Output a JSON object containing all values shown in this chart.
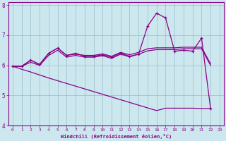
{
  "xlabel": "Windchill (Refroidissement éolien,°C)",
  "bg_color": "#cce8ee",
  "line_color": "#880088",
  "grid_color": "#99bbcc",
  "xmin": -0.5,
  "xmax": 23.5,
  "ymin": 4.0,
  "ymax": 8.1,
  "yticks": [
    4,
    5,
    6,
    7,
    8
  ],
  "xticks": [
    0,
    1,
    2,
    3,
    4,
    5,
    6,
    7,
    8,
    9,
    10,
    11,
    12,
    13,
    14,
    15,
    16,
    17,
    18,
    19,
    20,
    21,
    22,
    23
  ],
  "main_x": [
    0,
    1,
    2,
    3,
    4,
    5,
    6,
    7,
    8,
    9,
    10,
    11,
    12,
    13,
    14,
    15,
    16,
    17,
    18,
    19,
    20,
    21,
    22
  ],
  "main_y": [
    5.97,
    5.97,
    6.17,
    6.03,
    6.4,
    6.57,
    6.33,
    6.4,
    6.3,
    6.3,
    6.35,
    6.27,
    6.4,
    6.3,
    6.37,
    7.3,
    7.73,
    7.57,
    6.47,
    6.5,
    6.47,
    6.9,
    4.57
  ],
  "upper1_x": [
    0,
    1,
    2,
    3,
    4,
    5,
    6,
    7,
    8,
    9,
    10,
    11,
    12,
    13,
    14,
    15,
    16,
    17,
    18,
    19,
    20,
    21,
    22
  ],
  "upper1_y": [
    5.97,
    5.97,
    6.17,
    6.03,
    6.4,
    6.57,
    6.33,
    6.37,
    6.33,
    6.33,
    6.38,
    6.3,
    6.43,
    6.35,
    6.43,
    6.55,
    6.58,
    6.58,
    6.58,
    6.6,
    6.6,
    6.6,
    6.05
  ],
  "upper2_x": [
    0,
    1,
    2,
    3,
    4,
    5,
    6,
    7,
    8,
    9,
    10,
    11,
    12,
    13,
    14,
    15,
    16,
    17,
    18,
    19,
    20,
    21,
    22
  ],
  "upper2_y": [
    5.97,
    5.97,
    6.1,
    6.0,
    6.33,
    6.5,
    6.27,
    6.33,
    6.27,
    6.27,
    6.32,
    6.23,
    6.37,
    6.28,
    6.37,
    6.48,
    6.52,
    6.52,
    6.52,
    6.55,
    6.55,
    6.55,
    6.0
  ],
  "lower_x": [
    0,
    1,
    2,
    3,
    4,
    5,
    6,
    7,
    8,
    9,
    10,
    11,
    12,
    13,
    14,
    15,
    16,
    17,
    18,
    19,
    20,
    21,
    22
  ],
  "lower_y": [
    5.97,
    5.87,
    5.78,
    5.68,
    5.58,
    5.49,
    5.4,
    5.31,
    5.22,
    5.13,
    5.04,
    4.95,
    4.86,
    4.77,
    4.68,
    4.59,
    4.5,
    4.58,
    4.58,
    4.58,
    4.58,
    4.57,
    4.57
  ]
}
